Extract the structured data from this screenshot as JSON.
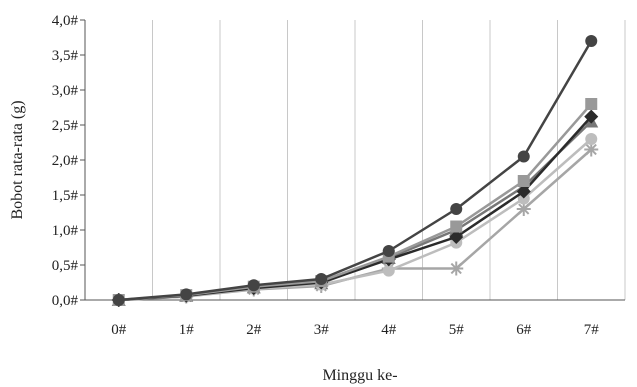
{
  "chart_data": {
    "type": "line",
    "title": "",
    "xlabel": "Minggu ke-",
    "ylabel": "Bobot rata-rata (g)",
    "categories": [
      "0#",
      "1#",
      "2#",
      "3#",
      "4#",
      "5#",
      "6#",
      "7#"
    ],
    "y_ticks": [
      "0,0#",
      "0,5#",
      "1,0#",
      "1,5#",
      "2,0#",
      "2,5#",
      "3,0#",
      "3,5#",
      "4,0#"
    ],
    "ylim": [
      0,
      4
    ],
    "grid": "vertical",
    "legend": "none",
    "series": [
      {
        "values": [
          0,
          0.08,
          0.21,
          0.3,
          0.7,
          1.3,
          2.05,
          3.7
        ],
        "color": "#444444",
        "marker": "circle"
      },
      {
        "values": [
          0,
          0.07,
          0.19,
          0.27,
          0.62,
          1.05,
          1.7,
          2.8
        ],
        "color": "#999999",
        "marker": "square"
      },
      {
        "values": [
          0,
          0.06,
          0.17,
          0.25,
          0.58,
          0.9,
          1.55,
          2.62
        ],
        "color": "#2b2b2b",
        "marker": "diamond"
      },
      {
        "values": [
          0,
          0.05,
          0.16,
          0.22,
          0.42,
          0.82,
          1.45,
          2.3
        ],
        "color": "#bdbdbd",
        "marker": "circle"
      },
      {
        "values": [
          0,
          0.06,
          0.18,
          0.24,
          0.6,
          1.0,
          1.62,
          2.55
        ],
        "color": "#777777",
        "marker": "triangle"
      },
      {
        "values": [
          0,
          0.05,
          0.15,
          0.2,
          0.45,
          0.45,
          1.3,
          2.15
        ],
        "color": "#a6a6a6",
        "marker": "star"
      }
    ]
  }
}
